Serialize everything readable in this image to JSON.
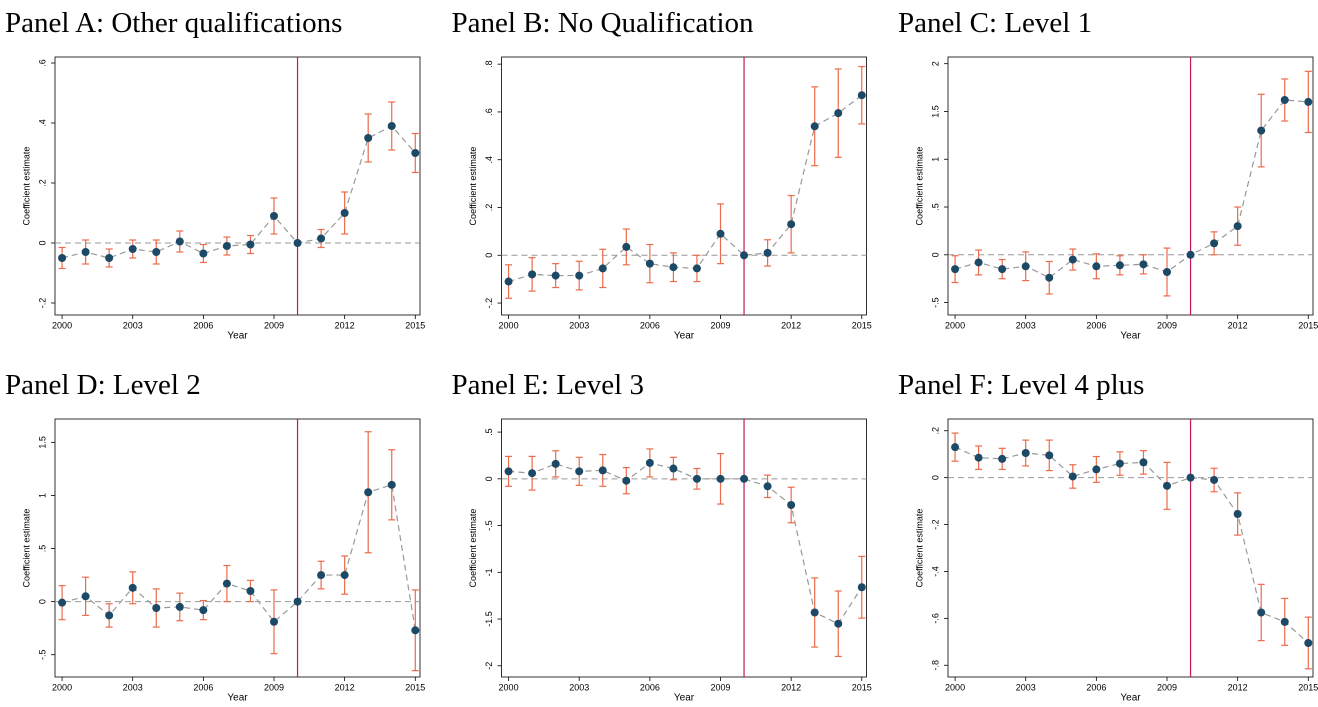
{
  "chart_data": [
    {
      "type": "errorbar",
      "title": "Panel A: Other qualifications",
      "xlabel": "Year",
      "ylabel": "Coefficient estimate",
      "x": [
        2000,
        2001,
        2002,
        2003,
        2004,
        2005,
        2006,
        2007,
        2008,
        2009,
        2010,
        2011,
        2012,
        2013,
        2014,
        2015
      ],
      "xlim": [
        1999.7,
        2015.2
      ],
      "xticks": [
        2000,
        2003,
        2006,
        2009,
        2012,
        2015
      ],
      "ylim": [
        -0.24,
        0.62
      ],
      "yticks": [
        {
          "value": -0.2,
          "label": "-.2"
        },
        0,
        {
          "value": 0.2,
          "label": ".2"
        },
        {
          "value": 0.4,
          "label": ".4"
        },
        {
          "value": 0.6,
          "label": ".6"
        }
      ],
      "vline": 2010,
      "hline": 0,
      "series": [
        {
          "color": "#1c4966",
          "line_color": "#999999",
          "error_color": "#ec6b4a",
          "values": [
            -0.05,
            -0.03,
            -0.05,
            -0.02,
            -0.03,
            0.005,
            -0.035,
            -0.01,
            -0.005,
            0.09,
            0,
            0.015,
            0.1,
            0.35,
            0.39,
            0.3
          ],
          "errors": [
            0.035,
            0.04,
            0.03,
            0.03,
            0.04,
            0.035,
            0.03,
            0.03,
            0.03,
            0.06,
            0,
            0.03,
            0.07,
            0.08,
            0.08,
            0.065
          ]
        }
      ]
    },
    {
      "type": "errorbar",
      "title": "Panel B: No Qualification",
      "xlabel": "Year",
      "ylabel": "Coefficient estimate",
      "x": [
        2000,
        2001,
        2002,
        2003,
        2004,
        2005,
        2006,
        2007,
        2008,
        2009,
        2010,
        2011,
        2012,
        2013,
        2014,
        2015
      ],
      "xlim": [
        1999.7,
        2015.2
      ],
      "xticks": [
        2000,
        2003,
        2006,
        2009,
        2012,
        2015
      ],
      "ylim": [
        -0.25,
        0.83
      ],
      "yticks": [
        {
          "value": -0.2,
          "label": "-.2"
        },
        0,
        {
          "value": 0.2,
          "label": ".2"
        },
        {
          "value": 0.4,
          "label": ".4"
        },
        {
          "value": 0.6,
          "label": ".6"
        },
        {
          "value": 0.8,
          "label": ".8"
        }
      ],
      "vline": 2010,
      "hline": 0,
      "series": [
        {
          "color": "#1c4966",
          "line_color": "#999999",
          "error_color": "#ec6b4a",
          "values": [
            -0.11,
            -0.08,
            -0.085,
            -0.085,
            -0.055,
            0.035,
            -0.035,
            -0.05,
            -0.055,
            0.09,
            0,
            0.01,
            0.13,
            0.54,
            0.595,
            0.67
          ],
          "errors": [
            0.07,
            0.07,
            0.05,
            0.06,
            0.08,
            0.075,
            0.08,
            0.06,
            0.055,
            0.125,
            0,
            0.055,
            0.12,
            0.165,
            0.185,
            0.12
          ]
        }
      ]
    },
    {
      "type": "errorbar",
      "title": "Panel C: Level 1",
      "xlabel": "Year",
      "ylabel": "Coefficient estimate",
      "x": [
        2000,
        2001,
        2002,
        2003,
        2004,
        2005,
        2006,
        2007,
        2008,
        2009,
        2010,
        2011,
        2012,
        2013,
        2014,
        2015
      ],
      "xlim": [
        1999.7,
        2015.2
      ],
      "xticks": [
        2000,
        2003,
        2006,
        2009,
        2012,
        2015
      ],
      "ylim": [
        -0.63,
        2.07
      ],
      "yticks": [
        {
          "value": -0.5,
          "label": "-.5"
        },
        0,
        {
          "value": 0.5,
          "label": ".5"
        },
        1,
        1.5,
        2
      ],
      "vline": 2010,
      "hline": 0,
      "series": [
        {
          "color": "#1c4966",
          "line_color": "#999999",
          "error_color": "#ec6b4a",
          "values": [
            -0.15,
            -0.08,
            -0.15,
            -0.12,
            -0.24,
            -0.05,
            -0.12,
            -0.11,
            -0.1,
            -0.18,
            0,
            0.12,
            0.3,
            1.3,
            1.62,
            1.6
          ],
          "errors": [
            0.14,
            0.13,
            0.1,
            0.15,
            0.17,
            0.11,
            0.13,
            0.1,
            0.1,
            0.25,
            0,
            0.12,
            0.2,
            0.38,
            0.22,
            0.32
          ]
        }
      ]
    },
    {
      "type": "errorbar",
      "title": "Panel D: Level 2",
      "xlabel": "Year",
      "ylabel": "Coefficient estimate",
      "x": [
        2000,
        2001,
        2002,
        2003,
        2004,
        2005,
        2006,
        2007,
        2008,
        2009,
        2010,
        2011,
        2012,
        2013,
        2014,
        2015
      ],
      "xlim": [
        1999.7,
        2015.2
      ],
      "xticks": [
        2000,
        2003,
        2006,
        2009,
        2012,
        2015
      ],
      "ylim": [
        -0.71,
        1.72
      ],
      "yticks": [
        {
          "value": -0.5,
          "label": "-.5"
        },
        0,
        {
          "value": 0.5,
          "label": ".5"
        },
        1,
        1.5
      ],
      "vline": 2010,
      "hline": 0,
      "series": [
        {
          "color": "#1c4966",
          "line_color": "#999999",
          "error_color": "#ec6b4a",
          "values": [
            -0.01,
            0.05,
            -0.13,
            0.13,
            -0.06,
            -0.05,
            -0.08,
            0.17,
            0.1,
            -0.19,
            0,
            0.25,
            0.25,
            1.03,
            1.1,
            -0.27
          ],
          "errors": [
            0.16,
            0.18,
            0.11,
            0.15,
            0.18,
            0.13,
            0.09,
            0.17,
            0.1,
            0.3,
            0,
            0.13,
            0.18,
            0.57,
            0.33,
            0.38
          ]
        }
      ]
    },
    {
      "type": "errorbar",
      "title": "Panel E: Level 3",
      "xlabel": "Year",
      "ylabel": "Coefficient estimate",
      "x": [
        2000,
        2001,
        2002,
        2003,
        2004,
        2005,
        2006,
        2007,
        2008,
        2009,
        2010,
        2011,
        2012,
        2013,
        2014,
        2015
      ],
      "xlim": [
        1999.7,
        2015.2
      ],
      "xticks": [
        2000,
        2003,
        2006,
        2009,
        2012,
        2015
      ],
      "ylim": [
        -2.12,
        0.64
      ],
      "yticks": [
        -2,
        -1.5,
        -1,
        {
          "value": -0.5,
          "label": "-.5"
        },
        0,
        {
          "value": 0.5,
          "label": ".5"
        }
      ],
      "vline": 2010,
      "hline": 0,
      "series": [
        {
          "color": "#1c4966",
          "line_color": "#999999",
          "error_color": "#ec6b4a",
          "values": [
            0.08,
            0.06,
            0.16,
            0.08,
            0.09,
            -0.02,
            0.17,
            0.11,
            0.0,
            0.0,
            0,
            -0.08,
            -0.28,
            -1.43,
            -1.55,
            -1.16
          ],
          "errors": [
            0.16,
            0.18,
            0.14,
            0.15,
            0.17,
            0.14,
            0.15,
            0.12,
            0.11,
            0.27,
            0,
            0.12,
            0.19,
            0.37,
            0.35,
            0.33
          ]
        }
      ]
    },
    {
      "type": "errorbar",
      "title": "Panel F: Level 4 plus",
      "xlabel": "Year",
      "ylabel": "Coefficient estimate",
      "x": [
        2000,
        2001,
        2002,
        2003,
        2004,
        2005,
        2006,
        2007,
        2008,
        2009,
        2010,
        2011,
        2012,
        2013,
        2014,
        2015
      ],
      "xlim": [
        1999.7,
        2015.2
      ],
      "xticks": [
        2000,
        2003,
        2006,
        2009,
        2012,
        2015
      ],
      "ylim": [
        -0.85,
        0.25
      ],
      "yticks": [
        {
          "value": -0.8,
          "label": "-.8"
        },
        {
          "value": -0.6,
          "label": "-.6"
        },
        {
          "value": -0.4,
          "label": "-.4"
        },
        {
          "value": -0.2,
          "label": "-.2"
        },
        0,
        {
          "value": 0.2,
          "label": ".2"
        }
      ],
      "vline": 2010,
      "hline": 0,
      "series": [
        {
          "color": "#1c4966",
          "line_color": "#999999",
          "error_color": "#ec6b4a",
          "values": [
            0.13,
            0.085,
            0.08,
            0.105,
            0.095,
            0.005,
            0.035,
            0.06,
            0.065,
            -0.035,
            0,
            -0.01,
            -0.155,
            -0.575,
            -0.615,
            -0.705
          ],
          "errors": [
            0.06,
            0.05,
            0.045,
            0.055,
            0.065,
            0.05,
            0.055,
            0.05,
            0.05,
            0.1,
            0,
            0.05,
            0.09,
            0.12,
            0.1,
            0.11
          ]
        }
      ]
    }
  ]
}
